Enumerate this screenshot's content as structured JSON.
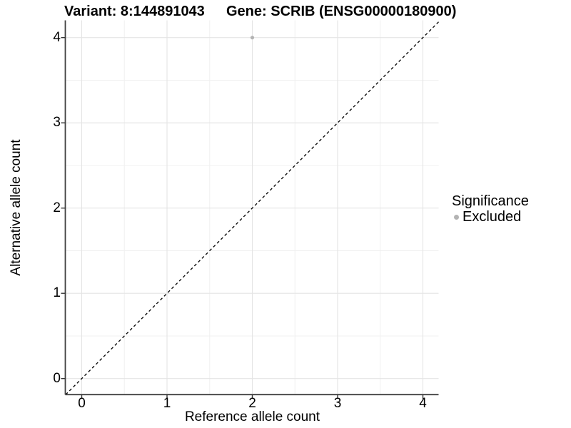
{
  "titles": {
    "variant": "Variant: 8:144891043",
    "gene": "Gene: SCRIB (ENSG00000180900)"
  },
  "legend": {
    "title": "Significance",
    "items": [
      {
        "label": "Excluded",
        "color": "#b3b3b3"
      }
    ]
  },
  "chart_data": {
    "type": "scatter",
    "title_left": "Variant: 8:144891043",
    "title_right": "Gene: SCRIB (ENSG00000180900)",
    "xlabel": "Reference allele count",
    "ylabel": "Alternative allele count",
    "xlim": [
      -0.2,
      4.2
    ],
    "ylim": [
      -0.2,
      4.2
    ],
    "x_ticks": [
      0,
      1,
      2,
      3,
      4
    ],
    "y_ticks": [
      0,
      1,
      2,
      3,
      4
    ],
    "x_minor_ticks": [
      0.5,
      1.5,
      2.5,
      3.5
    ],
    "y_minor_ticks": [
      0.5,
      1.5,
      2.5,
      3.5
    ],
    "grid": "major+minor",
    "legend_position": "right",
    "series": [
      {
        "name": "Excluded",
        "color": "#b3b3b3",
        "points": [
          {
            "x": 2,
            "y": 4
          }
        ]
      }
    ],
    "reference_line": {
      "type": "identity y=x",
      "slope": 1,
      "intercept": 0,
      "style": "dashed",
      "color": "#000000"
    }
  },
  "colors": {
    "background": "#ffffff",
    "grid_major": "#e4e4e4",
    "grid_minor": "#f0f0f0",
    "axis_line": "#404040",
    "tick_mark": "#333333",
    "text": "#000000",
    "excluded_point": "#b3b3b3"
  }
}
